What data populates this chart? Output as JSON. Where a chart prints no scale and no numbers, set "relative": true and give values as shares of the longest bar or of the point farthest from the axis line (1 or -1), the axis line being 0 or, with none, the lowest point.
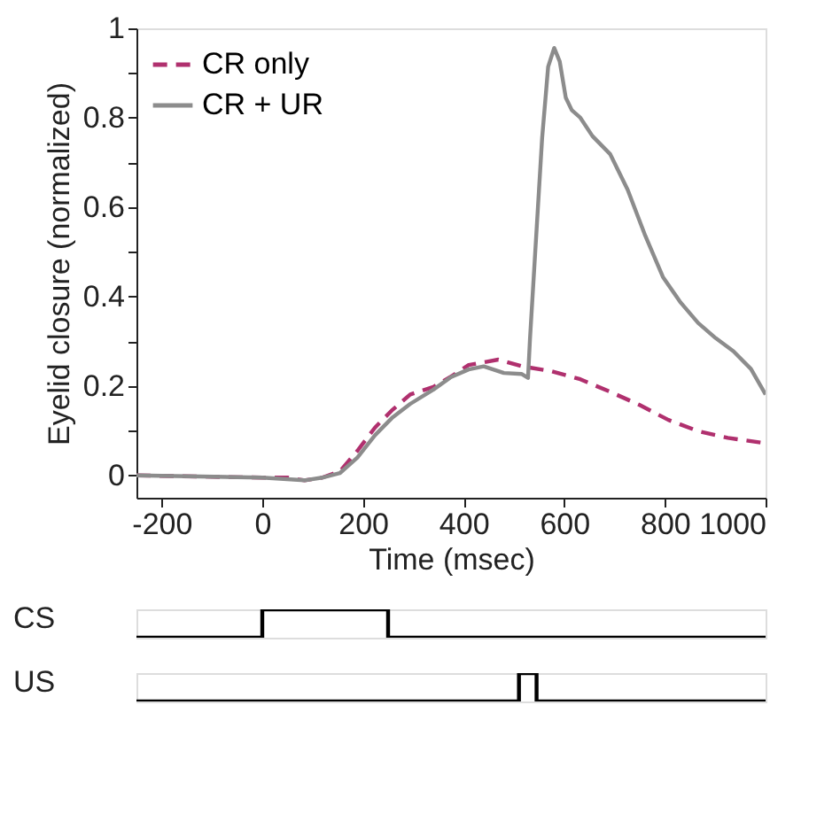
{
  "chart_data": [
    {
      "type": "line",
      "xlabel": "Time (msec)",
      "ylabel": "Eyelid closure (normalized)",
      "xlim": [
        -250,
        1000
      ],
      "ylim": [
        -0.05,
        1
      ],
      "xticks": [
        -200,
        0,
        200,
        400,
        600,
        800,
        1000
      ],
      "yticks": [
        0,
        {
          "value": 0.1,
          "label": null
        },
        0.2,
        {
          "value": 0.3,
          "label": null
        },
        0.4,
        {
          "value": 0.5,
          "label": null
        },
        0.6,
        {
          "value": 0.7,
          "label": null
        },
        0.8,
        {
          "value": 0.9,
          "label": null
        },
        1
      ],
      "grid": false,
      "legend": "top left",
      "series": [
        {
          "name": "CR only",
          "color": "#b0306e",
          "line_style": "dashed",
          "x": [
            -250,
            0,
            50,
            84,
            119,
            154,
            189,
            224,
            259,
            294,
            340,
            375,
            410,
            469,
            516,
            574,
            632,
            691,
            749,
            807,
            866,
            925,
            1000
          ],
          "values": [
            0,
            -0.005,
            -0.005,
            -0.011,
            -0.005,
            0.009,
            0.055,
            0.107,
            0.147,
            0.181,
            0.198,
            0.221,
            0.247,
            0.259,
            0.244,
            0.233,
            0.215,
            0.187,
            0.158,
            0.124,
            0.099,
            0.084,
            0.072
          ]
        },
        {
          "name": "CR + UR",
          "color": "#8c8c8c",
          "line_style": "solid",
          "x": [
            -250,
            0,
            84,
            119,
            154,
            189,
            224,
            259,
            294,
            340,
            375,
            410,
            440,
            480,
            515,
            528,
            532,
            556,
            568,
            580,
            591,
            603,
            615,
            632,
            656,
            691,
            726,
            761,
            796,
            831,
            866,
            901,
            936,
            971,
            1000
          ],
          "values": [
            0,
            -0.005,
            -0.011,
            -0.005,
            0.005,
            0.04,
            0.09,
            0.13,
            0.16,
            0.192,
            0.22,
            0.237,
            0.244,
            0.229,
            0.227,
            0.218,
            0.307,
            0.754,
            0.914,
            0.956,
            0.926,
            0.845,
            0.817,
            0.8,
            0.759,
            0.719,
            0.639,
            0.536,
            0.444,
            0.387,
            0.341,
            0.307,
            0.278,
            0.238,
            0.181
          ]
        }
      ]
    },
    {
      "type": "step",
      "relative": true,
      "xlim": [
        -250,
        1000
      ],
      "tick_labels": false,
      "series": [
        {
          "name": "CS",
          "color": "#000000",
          "x": [
            -250,
            0,
            250,
            1000
          ],
          "values": [
            0,
            1,
            0,
            0
          ]
        }
      ]
    },
    {
      "type": "step",
      "relative": true,
      "xlim": [
        -250,
        1000
      ],
      "tick_labels": false,
      "series": [
        {
          "name": "US",
          "color": "#000000",
          "x": [
            -250,
            510,
            545,
            1000
          ],
          "values": [
            0,
            1,
            0,
            0
          ]
        }
      ]
    }
  ]
}
